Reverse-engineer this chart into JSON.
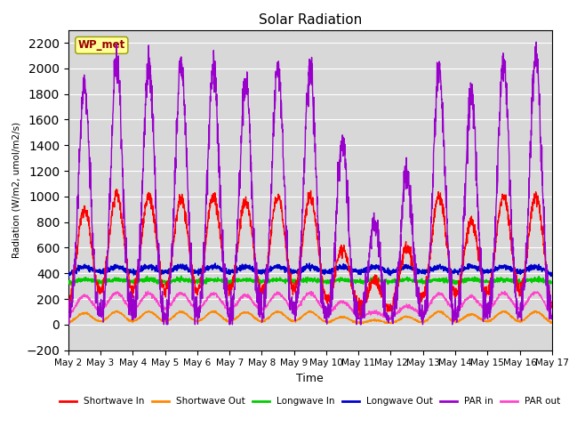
{
  "title": "Solar Radiation",
  "xlabel": "Time",
  "ylabel": "Radiation (W/m2, umol/m2/s)",
  "ylim": [
    -200,
    2300
  ],
  "yticks": [
    -200,
    0,
    200,
    400,
    600,
    800,
    1000,
    1200,
    1400,
    1600,
    1800,
    2000,
    2200
  ],
  "xticklabels": [
    "May 2",
    "May 3",
    "May 4",
    "May 5",
    "May 6",
    "May 7",
    "May 8",
    "May 9",
    "May 10",
    "May 11",
    "May 12",
    "May 13",
    "May 14",
    "May 15",
    "May 16",
    "May 17"
  ],
  "bg_color": "#d8d8d8",
  "fig_color": "#ffffff",
  "annotation_text": "WP_met",
  "annotation_bg": "#ffff99",
  "annotation_fg": "#990000",
  "legend": [
    {
      "label": "Shortwave In",
      "color": "#ff0000"
    },
    {
      "label": "Shortwave Out",
      "color": "#ff8800"
    },
    {
      "label": "Longwave In",
      "color": "#00cc00"
    },
    {
      "label": "Longwave Out",
      "color": "#0000cc"
    },
    {
      "label": "PAR in",
      "color": "#9900cc"
    },
    {
      "label": "PAR out",
      "color": "#ff44cc"
    }
  ],
  "sw_in_peaks": [
    900,
    1020,
    1000,
    980,
    1000,
    960,
    1000,
    1000,
    600,
    350,
    600,
    1000,
    800,
    1000,
    1010
  ],
  "par_in_peaks": [
    1850,
    2050,
    2010,
    2020,
    2010,
    1900,
    2020,
    2010,
    1450,
    800,
    1200,
    2000,
    1800,
    2030,
    2100
  ],
  "n_days": 15
}
